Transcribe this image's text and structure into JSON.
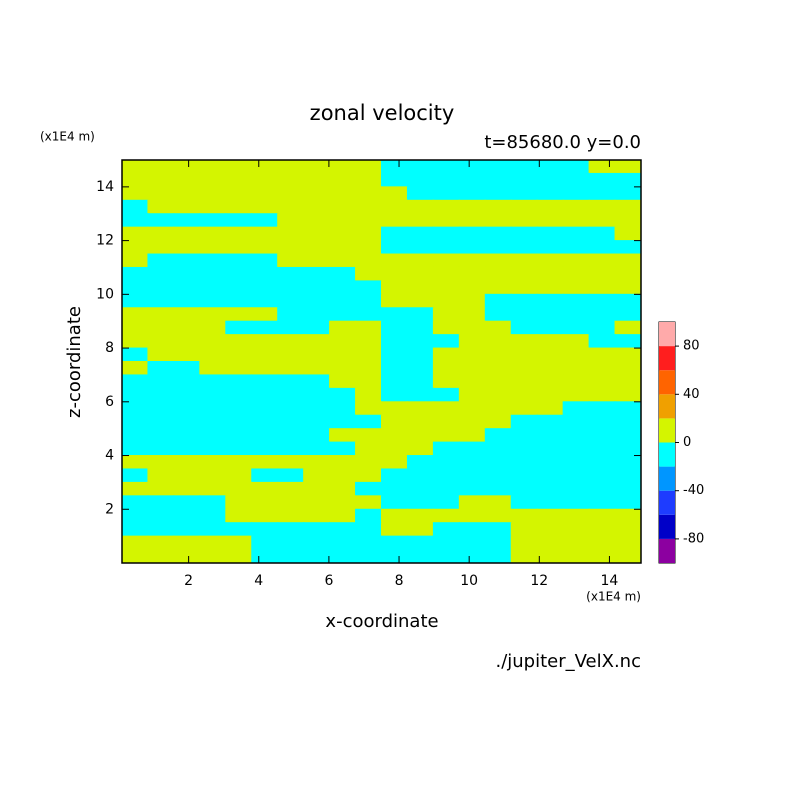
{
  "chart_data": {
    "type": "contour",
    "title": "zonal velocity",
    "subtitle": "t=85680.0 y=0.0",
    "x_label": "x-coordinate",
    "y_label": "z-coordinate",
    "x_unit": "(x1E4 m)",
    "y_unit": "(x1E4 m)",
    "source": "./jupiter_VelX.nc",
    "xlim": [
      0.1,
      14.9
    ],
    "ylim": [
      0,
      15
    ],
    "xticks": [
      2,
      4,
      6,
      8,
      10,
      12,
      14
    ],
    "yticks": [
      2,
      4,
      6,
      8,
      10,
      12,
      14
    ],
    "x": [
      0.47,
      1.21,
      1.95,
      2.69,
      3.43,
      4.17,
      4.91,
      5.65,
      6.39,
      7.13,
      7.87,
      8.61,
      9.35,
      10.09,
      10.83,
      11.57,
      12.31,
      13.05,
      13.79,
      14.53
    ],
    "z": [
      14.75,
      14.25,
      13.75,
      13.25,
      12.75,
      12.25,
      11.75,
      11.25,
      10.75,
      10.25,
      9.75,
      9.25,
      8.75,
      8.25,
      7.75,
      7.25,
      6.75,
      6.25,
      5.75,
      5.25,
      4.75,
      4.25,
      3.75,
      3.25,
      2.75,
      2.25,
      1.75,
      1.25,
      0.75,
      0.25
    ],
    "values": [
      [
        10,
        10,
        10,
        10,
        10,
        10,
        10,
        10,
        10,
        10,
        -10,
        -10,
        -10,
        -10,
        -10,
        -10,
        -10,
        -10,
        10,
        10
      ],
      [
        10,
        10,
        10,
        10,
        10,
        10,
        10,
        10,
        10,
        10,
        -10,
        -10,
        -10,
        -10,
        -10,
        -10,
        -10,
        -10,
        -10,
        -10
      ],
      [
        10,
        10,
        10,
        10,
        10,
        10,
        10,
        10,
        10,
        10,
        10,
        -10,
        -10,
        -10,
        -10,
        -10,
        -10,
        -10,
        -10,
        -10
      ],
      [
        -10,
        10,
        10,
        10,
        10,
        10,
        10,
        10,
        10,
        10,
        10,
        10,
        10,
        10,
        10,
        10,
        10,
        10,
        10,
        10
      ],
      [
        -10,
        -10,
        -10,
        -10,
        -10,
        -10,
        10,
        10,
        10,
        10,
        10,
        10,
        10,
        10,
        10,
        10,
        10,
        10,
        10,
        10
      ],
      [
        10,
        10,
        10,
        10,
        10,
        10,
        10,
        10,
        10,
        10,
        -10,
        -10,
        -10,
        -10,
        -10,
        -10,
        -10,
        -10,
        -10,
        10
      ],
      [
        10,
        10,
        10,
        10,
        10,
        10,
        10,
        10,
        10,
        10,
        -10,
        -10,
        -10,
        -10,
        -10,
        -10,
        -10,
        -10,
        -10,
        -10
      ],
      [
        10,
        -10,
        -10,
        -10,
        -10,
        -10,
        10,
        10,
        10,
        10,
        10,
        10,
        10,
        10,
        10,
        10,
        10,
        10,
        10,
        10
      ],
      [
        -10,
        -10,
        -10,
        -10,
        -10,
        -10,
        -10,
        -10,
        -10,
        10,
        10,
        10,
        10,
        10,
        10,
        10,
        10,
        10,
        10,
        10
      ],
      [
        -10,
        -10,
        -10,
        -10,
        -10,
        -10,
        -10,
        -10,
        -10,
        -10,
        10,
        10,
        10,
        10,
        10,
        10,
        10,
        10,
        10,
        10
      ],
      [
        -10,
        -10,
        -10,
        -10,
        -10,
        -10,
        -10,
        -10,
        -10,
        -10,
        10,
        10,
        10,
        10,
        -10,
        -10,
        -10,
        -10,
        -10,
        -10
      ],
      [
        10,
        10,
        10,
        10,
        10,
        10,
        -10,
        -10,
        -10,
        -10,
        -10,
        -10,
        10,
        10,
        -10,
        -10,
        -10,
        -10,
        -10,
        -10
      ],
      [
        10,
        10,
        10,
        10,
        -10,
        -10,
        -10,
        -10,
        10,
        10,
        -10,
        -10,
        10,
        10,
        10,
        -10,
        -10,
        -10,
        -10,
        10
      ],
      [
        10,
        10,
        10,
        10,
        10,
        10,
        10,
        10,
        10,
        10,
        -10,
        -10,
        -10,
        10,
        10,
        10,
        10,
        10,
        -10,
        -10
      ],
      [
        -10,
        10,
        10,
        10,
        10,
        10,
        10,
        10,
        10,
        10,
        -10,
        -10,
        10,
        10,
        10,
        10,
        10,
        10,
        10,
        10
      ],
      [
        10,
        -10,
        -10,
        10,
        10,
        10,
        10,
        10,
        10,
        10,
        -10,
        -10,
        10,
        10,
        10,
        10,
        10,
        10,
        10,
        10
      ],
      [
        -10,
        -10,
        -10,
        -10,
        -10,
        -10,
        -10,
        -10,
        10,
        10,
        -10,
        -10,
        10,
        10,
        10,
        10,
        10,
        10,
        10,
        10
      ],
      [
        -10,
        -10,
        -10,
        -10,
        -10,
        -10,
        -10,
        -10,
        -10,
        10,
        -10,
        -10,
        -10,
        10,
        10,
        10,
        10,
        10,
        10,
        10
      ],
      [
        -10,
        -10,
        -10,
        -10,
        -10,
        -10,
        -10,
        -10,
        -10,
        10,
        10,
        10,
        10,
        10,
        10,
        10,
        10,
        -10,
        -10,
        -10
      ],
      [
        -10,
        -10,
        -10,
        -10,
        -10,
        -10,
        -10,
        -10,
        -10,
        -10,
        10,
        10,
        10,
        10,
        10,
        -10,
        -10,
        -10,
        -10,
        -10
      ],
      [
        -10,
        -10,
        -10,
        -10,
        -10,
        -10,
        -10,
        -10,
        10,
        10,
        10,
        10,
        10,
        10,
        -10,
        -10,
        -10,
        -10,
        -10,
        -10
      ],
      [
        -10,
        -10,
        -10,
        -10,
        -10,
        -10,
        -10,
        -10,
        -10,
        10,
        10,
        10,
        -10,
        -10,
        -10,
        -10,
        -10,
        -10,
        -10,
        -10
      ],
      [
        10,
        10,
        10,
        10,
        10,
        10,
        10,
        10,
        10,
        10,
        10,
        -10,
        -10,
        -10,
        -10,
        -10,
        -10,
        -10,
        -10,
        -10
      ],
      [
        -10,
        10,
        10,
        10,
        10,
        -10,
        -10,
        10,
        10,
        10,
        -10,
        -10,
        -10,
        -10,
        -10,
        -10,
        -10,
        -10,
        -10,
        -10
      ],
      [
        10,
        10,
        10,
        10,
        10,
        10,
        10,
        10,
        10,
        -10,
        -10,
        -10,
        -10,
        -10,
        -10,
        -10,
        -10,
        -10,
        -10,
        -10
      ],
      [
        -10,
        -10,
        -10,
        -10,
        10,
        10,
        10,
        10,
        10,
        10,
        -10,
        -10,
        -10,
        10,
        10,
        -10,
        -10,
        -10,
        -10,
        -10
      ],
      [
        -10,
        -10,
        -10,
        -10,
        10,
        10,
        10,
        10,
        10,
        -10,
        10,
        10,
        10,
        10,
        10,
        10,
        10,
        10,
        10,
        10
      ],
      [
        -10,
        -10,
        -10,
        -10,
        -10,
        -10,
        -10,
        -10,
        -10,
        -10,
        10,
        10,
        -10,
        -10,
        -10,
        10,
        10,
        10,
        10,
        10
      ],
      [
        10,
        10,
        10,
        10,
        10,
        -10,
        -10,
        -10,
        -10,
        -10,
        -10,
        -10,
        -10,
        -10,
        -10,
        10,
        10,
        10,
        10,
        10
      ],
      [
        10,
        10,
        10,
        10,
        10,
        -10,
        -10,
        -10,
        -10,
        -10,
        -10,
        -10,
        -10,
        -10,
        -10,
        10,
        10,
        10,
        10,
        10
      ]
    ],
    "levels": [
      -100,
      -80,
      -60,
      -40,
      -20,
      0,
      20,
      40,
      60,
      80,
      100
    ],
    "colors": [
      "#8c00a0",
      "#0000c8",
      "#1e3cff",
      "#0096ff",
      "#00ffff",
      "#d4f500",
      "#f0a000",
      "#ff6400",
      "#ff1e1e",
      "#ffaaaa"
    ],
    "cbar_ticks": [
      -80,
      -40,
      0,
      40,
      80
    ]
  }
}
